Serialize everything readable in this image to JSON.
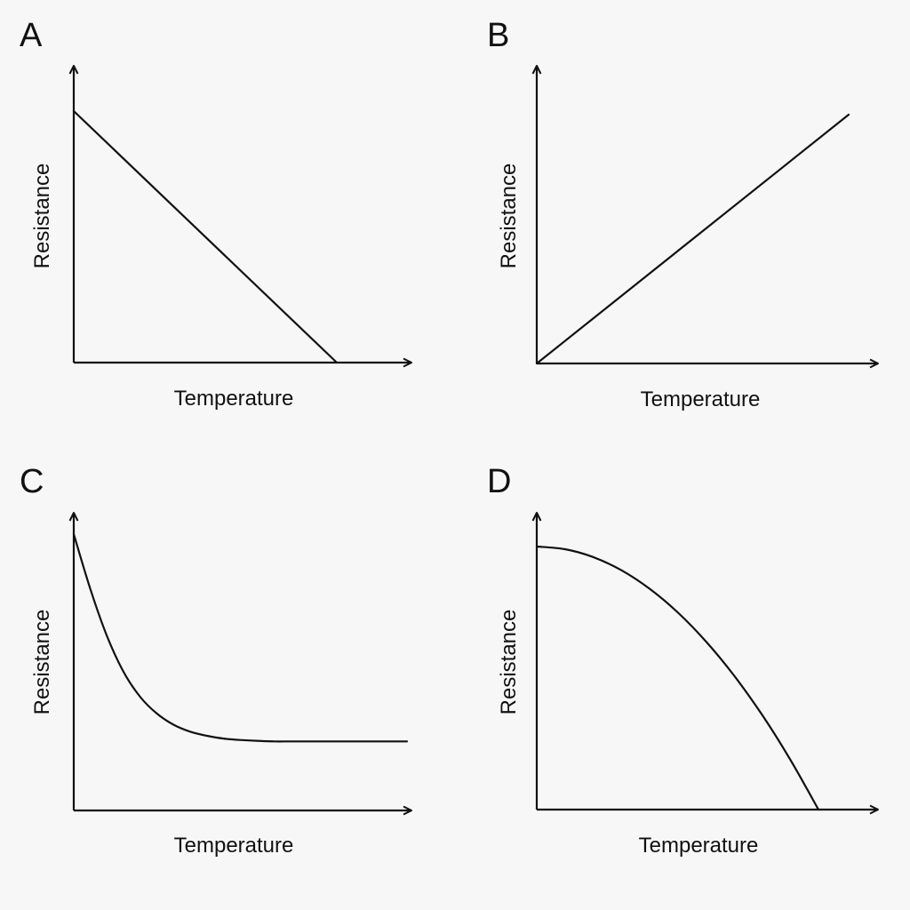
{
  "chart_data": [
    {
      "panel_label": "A",
      "type": "line",
      "xlabel": "Temperature",
      "ylabel": "Resistance",
      "grid": false,
      "xlim": [
        0,
        1
      ],
      "ylim": [
        0,
        1
      ],
      "x": [
        0,
        1
      ],
      "y": [
        1,
        0
      ]
    },
    {
      "panel_label": "B",
      "type": "line",
      "xlabel": "Temperature",
      "ylabel": "Resistance",
      "grid": false,
      "xlim": [
        0,
        1
      ],
      "ylim": [
        0,
        1
      ],
      "x": [
        0,
        1
      ],
      "y": [
        0,
        1
      ]
    },
    {
      "panel_label": "C",
      "type": "line",
      "xlabel": "Temperature",
      "ylabel": "Resistance",
      "grid": false,
      "xlim": [
        0,
        1
      ],
      "ylim": [
        0,
        1
      ],
      "x": [
        0,
        0.05,
        0.1,
        0.15,
        0.2,
        0.25,
        0.3,
        0.35,
        0.4,
        0.45,
        0.5,
        0.55,
        0.6,
        0.65,
        0.7,
        0.75,
        0.8,
        0.85,
        0.9,
        0.95,
        1
      ],
      "y": [
        1,
        0.8,
        0.63,
        0.5,
        0.41,
        0.35,
        0.31,
        0.285,
        0.27,
        0.26,
        0.255,
        0.252,
        0.25,
        0.25,
        0.25,
        0.25,
        0.25,
        0.25,
        0.25,
        0.25,
        0.25
      ]
    },
    {
      "panel_label": "D",
      "type": "line",
      "xlabel": "Temperature",
      "ylabel": "Resistance",
      "grid": false,
      "xlim": [
        0,
        1
      ],
      "ylim": [
        0,
        1
      ],
      "x": [
        0,
        0.1,
        0.2,
        0.3,
        0.4,
        0.5,
        0.6,
        0.7,
        0.8,
        0.9,
        1
      ],
      "y": [
        1,
        0.99,
        0.96,
        0.91,
        0.84,
        0.75,
        0.64,
        0.51,
        0.36,
        0.19,
        0
      ]
    }
  ]
}
